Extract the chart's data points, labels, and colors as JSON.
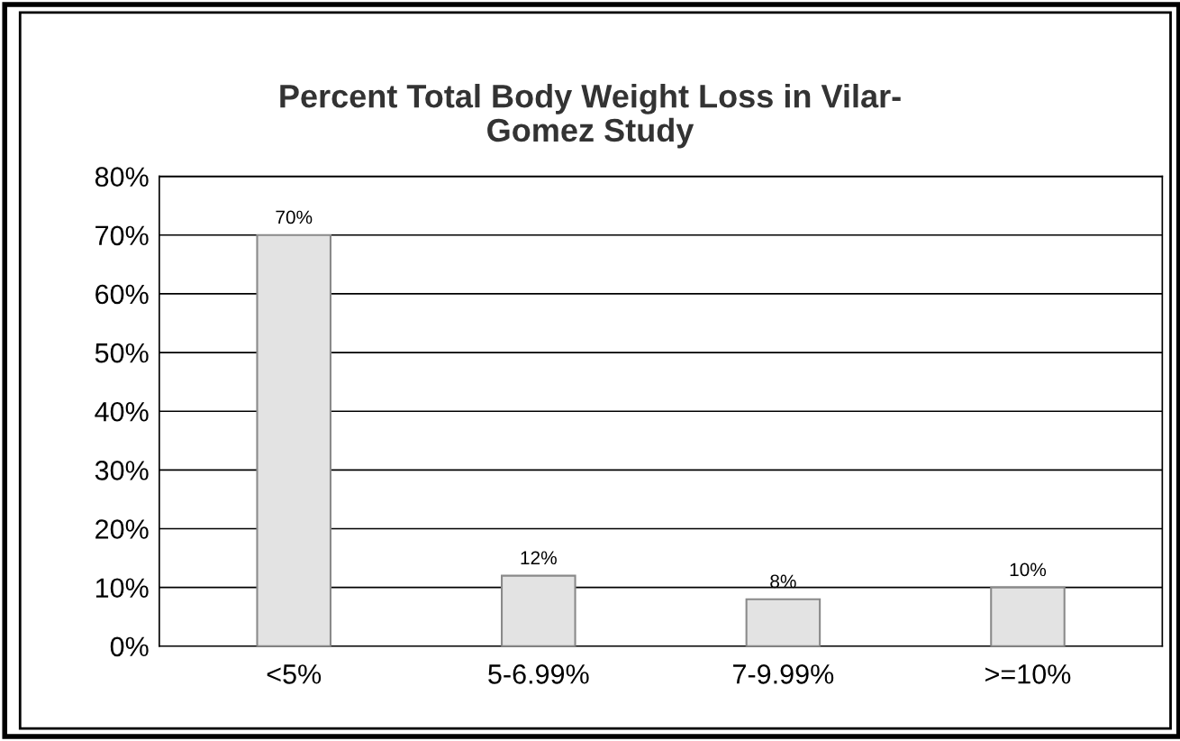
{
  "chart_data": {
    "type": "bar",
    "title": "Percent Total Body Weight Loss in Vilar-\nGomez Study",
    "categories": [
      "<5%",
      "5-6.99%",
      "7-9.99%",
      ">=10%"
    ],
    "values": [
      70,
      12,
      8,
      10
    ],
    "value_labels": [
      "70%",
      "12%",
      "8%",
      "10%"
    ],
    "color": "#e3e3e3",
    "ylim": [
      0,
      80
    ],
    "yticks": [
      {
        "value": 0,
        "label": "0%"
      },
      {
        "value": 10,
        "label": "10%"
      },
      {
        "value": 20,
        "label": "20%"
      },
      {
        "value": 30,
        "label": "30%"
      },
      {
        "value": 40,
        "label": "40%"
      },
      {
        "value": 50,
        "label": "50%"
      },
      {
        "value": 60,
        "label": "60%"
      },
      {
        "value": 70,
        "label": "70%"
      },
      {
        "value": 80,
        "label": "80%"
      }
    ],
    "grid": "y"
  }
}
